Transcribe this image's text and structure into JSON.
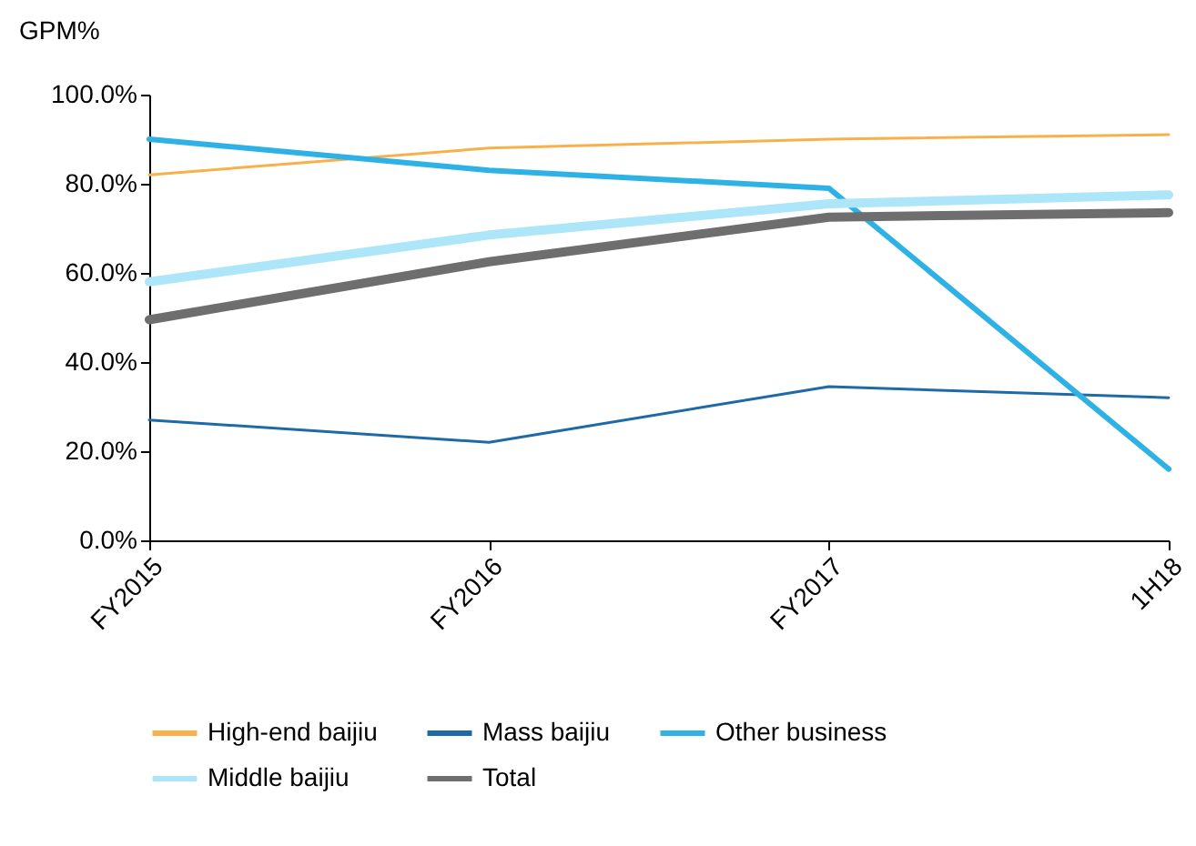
{
  "chart_data": {
    "type": "line",
    "ylabel": "GPM%",
    "categories": [
      "FY2015",
      "FY2016",
      "FY2017",
      "1H18"
    ],
    "series": [
      {
        "name": "High-end baijiu",
        "color": "#f9b04a",
        "values": [
          82,
          88,
          90,
          91
        ]
      },
      {
        "name": "Mass baijiu",
        "color": "#1f6aa6",
        "values": [
          27,
          22,
          34.5,
          32
        ]
      },
      {
        "name": "Other business",
        "color": "#2eb2e6",
        "values": [
          90,
          83,
          79,
          16
        ]
      },
      {
        "name": "Middle baijiu",
        "color": "#aee6f9",
        "values": [
          58,
          68.5,
          75.5,
          77.5
        ]
      },
      {
        "name": "Total",
        "color": "#6e6e6e",
        "values": [
          49.5,
          62.5,
          72.5,
          73.5
        ]
      }
    ],
    "ylim": [
      0,
      100
    ],
    "yticks": [
      {
        "value": 0,
        "label": "0.0%"
      },
      {
        "value": 20,
        "label": "20.0%"
      },
      {
        "value": 40,
        "label": "40.0%"
      },
      {
        "value": 60,
        "label": "60.0%"
      },
      {
        "value": 80,
        "label": "80.0%"
      },
      {
        "value": 100,
        "label": "100.0%"
      }
    ],
    "grid": false,
    "legend": "bottom"
  }
}
